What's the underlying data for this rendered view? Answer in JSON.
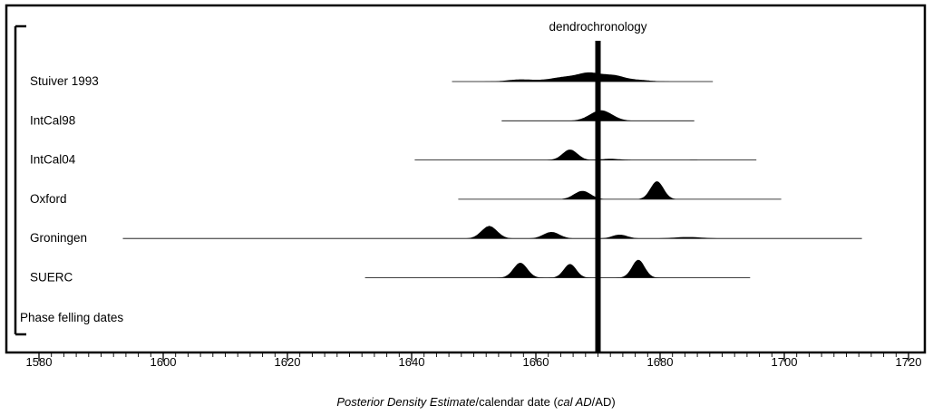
{
  "chart_data": {
    "type": "area",
    "xlim": [
      1575,
      1725
    ],
    "x_ticks": [
      1580,
      1600,
      1620,
      1640,
      1660,
      1680,
      1700,
      1720
    ],
    "x_tick_labels": [
      "1580",
      "1600",
      "1620",
      "1640",
      "1660",
      "1680",
      "1700",
      "1720"
    ],
    "minor_tick_step": 2,
    "xlabel_parts": [
      {
        "text": "Posterior Density Estimate",
        "italic": true
      },
      {
        "text": "/calendar date (",
        "italic": false
      },
      {
        "text": "cal AD",
        "italic": true
      },
      {
        "text": "/AD)",
        "italic": false
      }
    ],
    "reference_line": {
      "label": "dendrochronology",
      "x": 1670
    },
    "bracket_label": "Phase felling dates",
    "series": [
      {
        "name": "Stuiver 1993",
        "range": [
          1646.5,
          1688.5
        ],
        "peaks": [
          [
            1657.5,
            0.7,
            0.12
          ],
          [
            1661.5,
            0.3,
            0.18
          ],
          [
            1664.5,
            1.3,
            0.15
          ],
          [
            1668.5,
            2.8,
            0.14
          ],
          [
            1672.5,
            1.9,
            0.16
          ],
          [
            1676.5,
            0.5,
            0.14
          ]
        ]
      },
      {
        "name": "IntCal98",
        "range": [
          1654.5,
          1685.5
        ],
        "peaks": [
          [
            1670.5,
            3.5,
            0.16
          ]
        ]
      },
      {
        "name": "IntCal04",
        "range": [
          1640.5,
          1695.5
        ],
        "peaks": [
          [
            1665.5,
            3.5,
            0.35
          ],
          [
            1672.0,
            0.4,
            0.22
          ],
          [
            1685.5,
            0.05,
            0.3
          ]
        ]
      },
      {
        "name": "Oxford",
        "range": [
          1647.5,
          1699.5
        ],
        "peaks": [
          [
            1667.5,
            2.8,
            0.28
          ],
          [
            1679.5,
            6.0,
            0.45
          ]
        ]
      },
      {
        "name": "Groningen",
        "range": [
          1593.5,
          1712.5
        ],
        "peaks": [
          [
            1652.5,
            4.2,
            0.32
          ],
          [
            1662.5,
            2.2,
            0.3
          ],
          [
            1673.5,
            1.3,
            0.35
          ],
          [
            1684.5,
            0.5,
            0.1
          ]
        ]
      },
      {
        "name": "SUERC",
        "range": [
          1632.5,
          1694.5
        ],
        "peaks": [
          [
            1657.5,
            5.0,
            0.4
          ],
          [
            1665.5,
            4.6,
            0.5
          ],
          [
            1676.5,
            6.0,
            0.48
          ]
        ]
      }
    ]
  }
}
